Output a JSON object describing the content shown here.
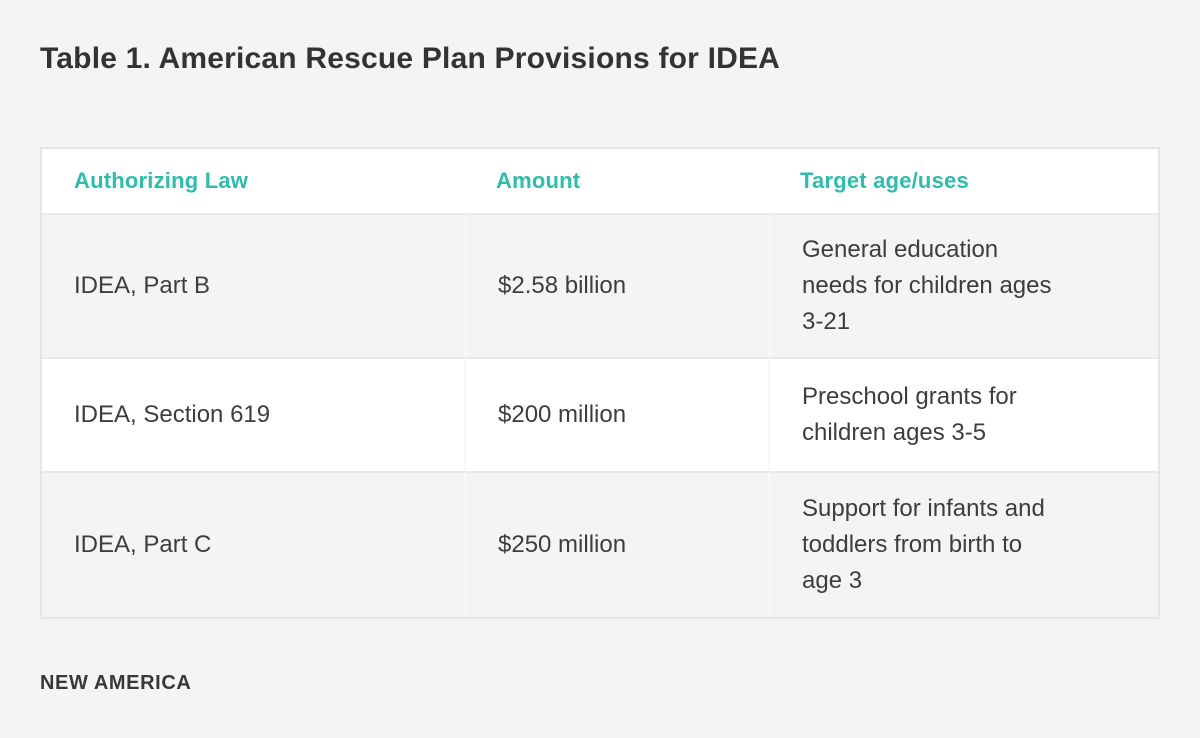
{
  "page": {
    "title": "Table 1. American Rescue Plan Provisions for IDEA",
    "source_label": "NEW AMERICA"
  },
  "colors": {
    "accent_teal": "#2ebcad",
    "page_background": "#f4f4f4",
    "white_row": "#ffffff",
    "outer_border": "#e5e5e5",
    "text_dark": "#3d3d3d"
  },
  "table": {
    "columns": [
      "Authorizing Law",
      "Amount",
      "Target age/uses"
    ],
    "rows": [
      {
        "law": "IDEA, Part B",
        "amount": "$2.58 billion",
        "target": "General education\nneeds for children ages\n3-21"
      },
      {
        "law": "IDEA, Section 619",
        "amount": "$200 million",
        "target": "Preschool grants for\nchildren ages 3-5"
      },
      {
        "law": "IDEA, Part C",
        "amount": "$250 million",
        "target": "Support for infants and\ntoddlers from birth to\nage 3"
      }
    ]
  },
  "chart_data": {
    "type": "table",
    "title": "Table 1. American Rescue Plan Provisions for IDEA",
    "columns": [
      "Authorizing Law",
      "Amount",
      "Target age/uses"
    ],
    "rows": [
      [
        "IDEA, Part B",
        "$2.58 billion",
        "General education needs for children ages 3-21"
      ],
      [
        "IDEA, Section 619",
        "$200 million",
        "Preschool grants for children ages 3-5"
      ],
      [
        "IDEA, Part C",
        "$250 million",
        "Support for infants and toddlers from birth to age 3"
      ]
    ],
    "amounts_usd_millions": [
      2580,
      200,
      250
    ],
    "source": "NEW AMERICA"
  }
}
